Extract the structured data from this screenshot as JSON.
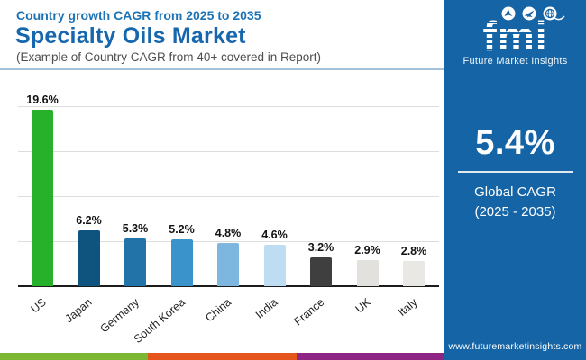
{
  "header": {
    "kicker": "Country growth CAGR from 2025 to 2035",
    "title": "Specialty Oils Market",
    "subtitle": "(Example of Country CAGR from 40+ covered in Report)"
  },
  "chart_data": {
    "type": "bar",
    "title": "Specialty Oils Market — Country growth CAGR from 2025 to 2035",
    "categories": [
      "US",
      "Japan",
      "Germany",
      "South Korea",
      "China",
      "India",
      "France",
      "UK",
      "Italy"
    ],
    "values": [
      19.6,
      6.2,
      5.3,
      5.2,
      4.8,
      4.6,
      3.2,
      2.9,
      2.8
    ],
    "labels": [
      "19.6%",
      "6.2%",
      "5.3%",
      "5.2%",
      "4.8%",
      "4.6%",
      "3.2%",
      "2.9%",
      "2.8%"
    ],
    "bar_colors": [
      "#27b12a",
      "#0f537f",
      "#2173a8",
      "#3b93cb",
      "#7db7e0",
      "#bfddf2",
      "#3f3f3f",
      "#e3e1de",
      "#eae8e5"
    ],
    "xlabel": "",
    "ylabel": "",
    "ylim": [
      0,
      20
    ],
    "gridlines": [
      5,
      10,
      15,
      20
    ],
    "grid": true,
    "legend": "none",
    "value_unit": "%"
  },
  "sidebar": {
    "bg_color": "#1464a6",
    "logo": {
      "text": "fmi",
      "tagline": "Future Market Insights"
    },
    "stat_value": "5.4%",
    "stat_label_line1": "Global CAGR",
    "stat_label_line2": "(2025 - 2035)",
    "website": "www.futuremarketinsights.com"
  },
  "footer_strip": {
    "colors": [
      "#7cb733",
      "#e4561c",
      "#8e2483"
    ]
  }
}
